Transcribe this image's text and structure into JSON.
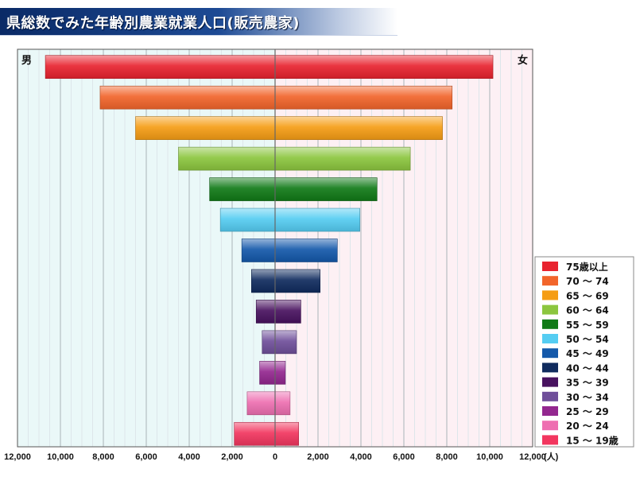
{
  "title": "県総数でみた年齢別農業就業人口(販売農家)",
  "chart_data": {
    "type": "bar",
    "categories": [
      "75歳以上",
      "70 ～ 74",
      "65 ～ 69",
      "60 ～ 64",
      "55 ～ 59",
      "50 ～ 54",
      "45 ～ 49",
      "40 ～ 44",
      "35 ～ 39",
      "30 ～ 34",
      "25 ～ 29",
      "20 ～ 24",
      "15 ～ 19歳"
    ],
    "series": [
      {
        "name": "男",
        "values": [
          10700,
          8150,
          6500,
          4500,
          3050,
          2550,
          1550,
          1100,
          880,
          600,
          720,
          1300,
          1900
        ]
      },
      {
        "name": "女",
        "values": [
          10150,
          8250,
          7800,
          6300,
          4750,
          3950,
          2900,
          2100,
          1200,
          1000,
          480,
          700,
          1100
        ]
      }
    ],
    "colors": [
      "#e8232f",
      "#f2652b",
      "#f59d15",
      "#8cc63f",
      "#117a17",
      "#55cdf2",
      "#1459aa",
      "#102b5e",
      "#48125f",
      "#6f4f9a",
      "#93278f",
      "#ee6fb1",
      "#f2365f"
    ],
    "xlim": [
      -12000,
      12000
    ],
    "x_ticks": [
      "12,000",
      "10,000",
      "8,000",
      "6,000",
      "4,000",
      "2,000",
      "0",
      "2,000",
      "4,000",
      "6,000",
      "8,000",
      "10,000",
      "12,000"
    ],
    "x_unit": "(人)",
    "left_label": "男",
    "right_label": "女",
    "legend_placement": "right",
    "grid": true
  }
}
